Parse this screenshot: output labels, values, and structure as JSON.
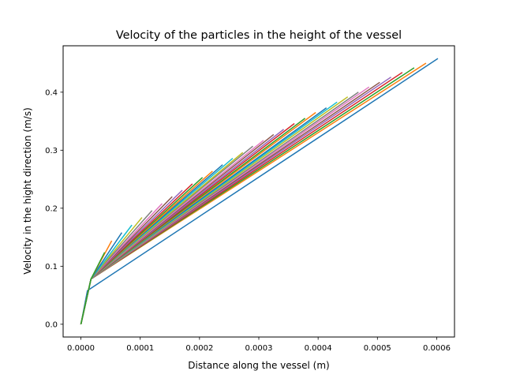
{
  "chart_data": {
    "type": "line",
    "title": "Velocity of the particles in the height of the vessel",
    "xlabel": "Distance along the vessel (m)",
    "ylabel": "Velocity in the hight direction (m/s)",
    "xlim": [
      -3e-05,
      0.00063
    ],
    "ylim": [
      -0.022,
      0.48
    ],
    "xticks": [
      0,
      0.0001,
      0.0002,
      0.0003,
      0.0004,
      0.0005,
      0.0006
    ],
    "xtick_labels": [
      "0.0000",
      "0.0001",
      "0.0002",
      "0.0003",
      "0.0004",
      "0.0005",
      "0.0006"
    ],
    "yticks": [
      0,
      0.1,
      0.2,
      0.3,
      0.4
    ],
    "ytick_labels": [
      "0.0",
      "0.1",
      "0.2",
      "0.3",
      "0.4"
    ],
    "grid": false,
    "legend": "none",
    "palette": [
      "#1f77b4",
      "#ff7f0e",
      "#2ca02c",
      "#d62728",
      "#9467bd",
      "#8c564b",
      "#e377c2",
      "#7f7f7f",
      "#bcbd22",
      "#17becf"
    ],
    "series_description": "Approximately 30 trajectories, each rising from (0, 0) through a knee near (0.000017, 0.078) to an end point; end points listed below in order of drawing.",
    "knee": [
      1.7e-05,
      0.078
    ],
    "first_series_knee": [
      1.1e-05,
      0.058
    ],
    "series_endpoints": [
      [
        0.000602,
        0.458
      ],
      [
        0.000582,
        0.45
      ],
      [
        0.000562,
        0.442
      ],
      [
        0.000542,
        0.434
      ],
      [
        0.000523,
        0.426
      ],
      [
        0.000504,
        0.417
      ],
      [
        0.000486,
        0.409
      ],
      [
        0.000468,
        0.4
      ],
      [
        0.00045,
        0.392
      ],
      [
        0.000432,
        0.383
      ],
      [
        0.000414,
        0.373
      ],
      [
        0.000396,
        0.365
      ],
      [
        0.000378,
        0.355
      ],
      [
        0.00036,
        0.346
      ],
      [
        0.000342,
        0.336
      ],
      [
        0.000325,
        0.327
      ],
      [
        0.000308,
        0.317
      ],
      [
        0.00029,
        0.307
      ],
      [
        0.000273,
        0.296
      ],
      [
        0.000256,
        0.286
      ],
      [
        0.000239,
        0.275
      ],
      [
        0.000222,
        0.264
      ],
      [
        0.000205,
        0.253
      ],
      [
        0.000188,
        0.242
      ],
      [
        0.000171,
        0.231
      ],
      [
        0.000154,
        0.22
      ],
      [
        0.000137,
        0.208
      ],
      [
        0.00012,
        0.196
      ],
      [
        0.000103,
        0.184
      ],
      [
        8.6e-05,
        0.171
      ],
      [
        6.9e-05,
        0.158
      ],
      [
        5.2e-05,
        0.144
      ],
      [
        4e-05,
        0.124
      ]
    ]
  }
}
